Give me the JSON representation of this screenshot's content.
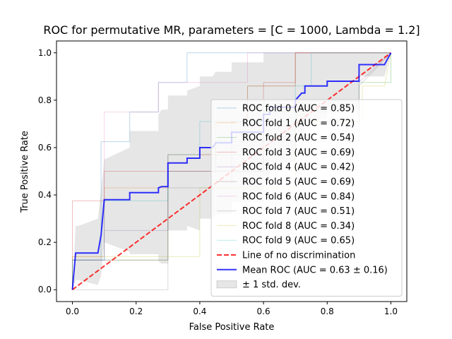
{
  "chart_data": {
    "type": "line",
    "title": "ROC for permutative MR, parameters = [C = 1000, Lambda = 1.2]",
    "xlabel": "False Positive Rate",
    "ylabel": "True Positive Rate",
    "xlim": [
      -0.05,
      1.05
    ],
    "ylim": [
      -0.05,
      1.05
    ],
    "xticks": [
      0.0,
      0.2,
      0.4,
      0.6,
      0.8,
      1.0
    ],
    "yticks": [
      0.0,
      0.2,
      0.4,
      0.6,
      0.8,
      1.0
    ],
    "xtick_labels": [
      "0.0",
      "0.2",
      "0.4",
      "0.6",
      "0.8",
      "1.0"
    ],
    "ytick_labels": [
      "0.0",
      "0.2",
      "0.4",
      "0.6",
      "0.8",
      "1.0"
    ],
    "legend_position": "lower-right",
    "folds": [
      {
        "name": "ROC fold 0 (AUC = 0.85)",
        "color": "#1f77b4",
        "x": [
          0,
          0,
          0.09,
          0.09,
          0.18,
          0.18,
          0.27,
          0.27,
          0.36,
          0.36,
          0.73,
          0.73,
          1.0
        ],
        "y": [
          0,
          0.125,
          0.125,
          0.625,
          0.625,
          0.75,
          0.75,
          0.875,
          0.875,
          1.0,
          1.0,
          1.0,
          1.0
        ]
      },
      {
        "name": "ROC fold 1 (AUC = 0.72)",
        "color": "#ff7f0e",
        "x": [
          0,
          0,
          0.1,
          0.1,
          0.3,
          0.3,
          0.45,
          0.45,
          0.55,
          0.55,
          0.7,
          0.7,
          1.0
        ],
        "y": [
          0,
          0.14,
          0.14,
          0.43,
          0.43,
          0.57,
          0.57,
          0.71,
          0.71,
          0.86,
          0.86,
          1.0,
          1.0
        ]
      },
      {
        "name": "ROC fold 2 (AUC = 0.54)",
        "color": "#2ca02c",
        "x": [
          0,
          0,
          0.3,
          0.3,
          0.45,
          0.45,
          0.6,
          0.6,
          0.9,
          0.9,
          1.0,
          1.0
        ],
        "y": [
          0,
          0.125,
          0.125,
          0.5,
          0.5,
          0.625,
          0.625,
          0.75,
          0.75,
          0.875,
          0.875,
          1.0
        ]
      },
      {
        "name": "ROC fold 3 (AUC = 0.69)",
        "color": "#d62728",
        "x": [
          0,
          0,
          0.1,
          0.1,
          0.6,
          0.6,
          0.6,
          0.6,
          0.7,
          0.7,
          1.0
        ],
        "y": [
          0,
          0.375,
          0.375,
          0.5,
          0.5,
          0.75,
          0.75,
          0.875,
          0.875,
          1.0,
          1.0
        ]
      },
      {
        "name": "ROC fold 4 (AUC = 0.42)",
        "color": "#9467bd",
        "x": [
          0,
          0,
          0.1,
          0.1,
          0.3,
          0.3,
          0.6,
          0.6,
          0.9,
          0.9,
          1.0
        ],
        "y": [
          0,
          0.125,
          0.125,
          0.25,
          0.25,
          0.5,
          0.5,
          0.625,
          0.625,
          0.875,
          1.0
        ]
      },
      {
        "name": "ROC fold 5 (AUC = 0.69)",
        "color": "#8c564b",
        "x": [
          0,
          0,
          0.3,
          0.3,
          0.5,
          0.5,
          0.55,
          0.55,
          0.7,
          0.7,
          1.0
        ],
        "y": [
          0,
          0.125,
          0.125,
          0.57,
          0.57,
          0.71,
          0.71,
          0.86,
          0.86,
          1.0,
          1.0
        ]
      },
      {
        "name": "ROC fold 6 (AUC = 0.84)",
        "color": "#e377c2",
        "x": [
          0,
          0,
          0.1,
          0.1,
          0.27,
          0.27,
          0.5,
          0.5,
          0.55,
          0.55,
          1.0
        ],
        "y": [
          0,
          0.125,
          0.125,
          0.75,
          0.75,
          0.875,
          0.875,
          0.875,
          0.875,
          1.0,
          1.0
        ]
      },
      {
        "name": "ROC fold 7 (AUC = 0.51)",
        "color": "#7f7f7f",
        "x": [
          0,
          0,
          0.3,
          0.3,
          0.5,
          0.5,
          0.7,
          0.7,
          0.9,
          0.9,
          1.0
        ],
        "y": [
          0,
          0.0,
          0.0,
          0.43,
          0.43,
          0.57,
          0.57,
          0.71,
          0.71,
          0.86,
          1.0
        ]
      },
      {
        "name": "ROC fold 8 (AUC = 0.34)",
        "color": "#bcbd22",
        "x": [
          0,
          0,
          0.4,
          0.4,
          0.7,
          0.7,
          0.91,
          0.91,
          0.98,
          0.98,
          1.0
        ],
        "y": [
          0,
          0.14,
          0.14,
          0.43,
          0.43,
          0.71,
          0.71,
          0.86,
          0.86,
          0.86,
          1.0
        ]
      },
      {
        "name": "ROC fold 9 (AUC = 0.65)",
        "color": "#17becf",
        "x": [
          0,
          0,
          0.1,
          0.1,
          0.3,
          0.3,
          0.4,
          0.4,
          0.7,
          0.7,
          0.75,
          0.75,
          1.0
        ],
        "y": [
          0,
          0.125,
          0.125,
          0.375,
          0.375,
          0.57,
          0.57,
          0.71,
          0.71,
          0.86,
          0.86,
          1.0,
          1.0
        ]
      }
    ],
    "chance_line": {
      "name": "Line of no discrimination",
      "color": "#ff0000",
      "x": [
        0,
        1
      ],
      "y": [
        0,
        1
      ]
    },
    "mean_roc": {
      "name": "Mean ROC (AUC = 0.63 ± 0.16)",
      "color": "#0000ff",
      "x": [
        0.0,
        0.01,
        0.02,
        0.08,
        0.09,
        0.1,
        0.18,
        0.18,
        0.27,
        0.27,
        0.28,
        0.3,
        0.3,
        0.36,
        0.36,
        0.4,
        0.4,
        0.44,
        0.45,
        0.5,
        0.5,
        0.6,
        0.6,
        0.62,
        0.62,
        0.7,
        0.7,
        0.72,
        0.73,
        0.73,
        0.8,
        0.8,
        0.9,
        0.9,
        0.98,
        1.0
      ],
      "y": [
        0.0,
        0.155,
        0.155,
        0.155,
        0.23,
        0.38,
        0.38,
        0.41,
        0.41,
        0.43,
        0.435,
        0.435,
        0.535,
        0.535,
        0.555,
        0.555,
        0.6,
        0.6,
        0.62,
        0.62,
        0.665,
        0.665,
        0.74,
        0.74,
        0.77,
        0.77,
        0.8,
        0.83,
        0.83,
        0.86,
        0.86,
        0.88,
        0.88,
        0.95,
        0.95,
        1.0
      ]
    },
    "std_band": {
      "name": "± 1 std. dev.",
      "color": "#808080",
      "x": [
        0.0,
        0.01,
        0.02,
        0.08,
        0.09,
        0.1,
        0.18,
        0.18,
        0.27,
        0.27,
        0.28,
        0.3,
        0.3,
        0.36,
        0.36,
        0.4,
        0.4,
        0.44,
        0.45,
        0.5,
        0.5,
        0.6,
        0.6,
        0.62,
        0.62,
        0.7,
        0.7,
        0.72,
        0.73,
        0.73,
        0.8,
        0.8,
        0.9,
        0.9,
        0.98,
        1.0
      ],
      "upper": [
        0.0,
        0.27,
        0.27,
        0.3,
        0.42,
        0.55,
        0.6,
        0.67,
        0.67,
        0.74,
        0.76,
        0.76,
        0.82,
        0.82,
        0.84,
        0.86,
        0.9,
        0.9,
        0.92,
        0.92,
        0.96,
        0.96,
        1.0,
        1.0,
        1.0,
        1.0,
        1.0,
        1.0,
        1.0,
        1.0,
        1.0,
        1.0,
        1.0,
        1.0,
        1.0,
        1.0
      ],
      "lower": [
        0.0,
        0.04,
        0.04,
        0.02,
        0.06,
        0.2,
        0.16,
        0.15,
        0.15,
        0.12,
        0.11,
        0.11,
        0.25,
        0.25,
        0.27,
        0.25,
        0.3,
        0.3,
        0.32,
        0.32,
        0.37,
        0.37,
        0.48,
        0.48,
        0.54,
        0.54,
        0.6,
        0.66,
        0.66,
        0.72,
        0.72,
        0.76,
        0.76,
        0.9,
        0.9,
        1.0
      ]
    }
  }
}
